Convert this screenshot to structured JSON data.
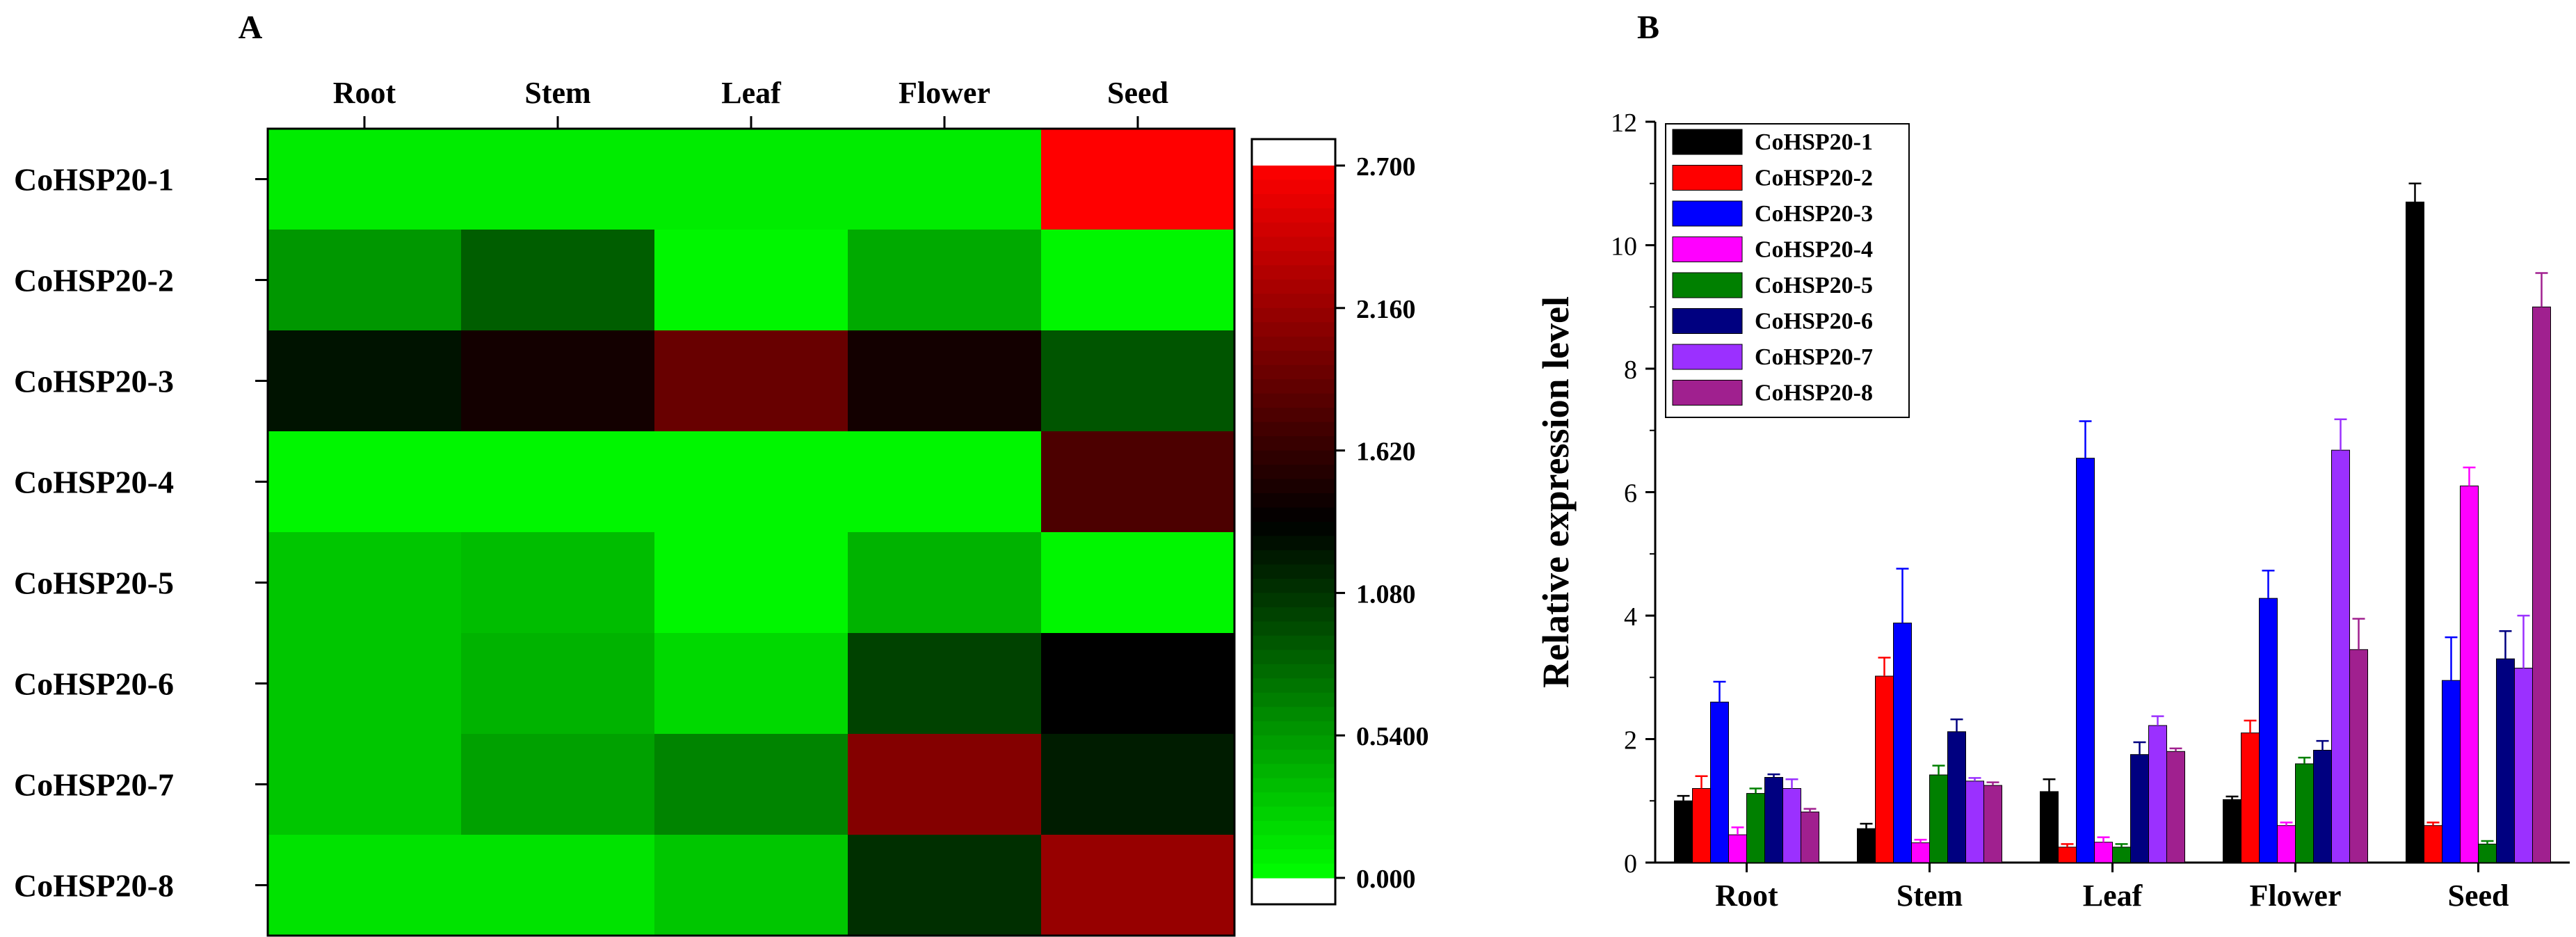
{
  "panels": {
    "a_label": "A",
    "b_label": "B"
  },
  "chart_data": [
    {
      "type": "heatmap",
      "panel": "A",
      "columns": [
        "Root",
        "Stem",
        "Leaf",
        "Flower",
        "Seed"
      ],
      "rows": [
        "CoHSP20-1",
        "CoHSP20-2",
        "CoHSP20-3",
        "CoHSP20-4",
        "CoHSP20-5",
        "CoHSP20-6",
        "CoHSP20-7",
        "CoHSP20-8"
      ],
      "values": [
        [
          0.1,
          0.1,
          0.1,
          0.1,
          2.7
        ],
        [
          0.55,
          0.85,
          0.05,
          0.45,
          0.05
        ],
        [
          1.25,
          1.45,
          1.9,
          1.45,
          0.9
        ],
        [
          0.05,
          0.05,
          0.05,
          0.05,
          1.75
        ],
        [
          0.3,
          0.35,
          0.05,
          0.4,
          0.05
        ],
        [
          0.3,
          0.4,
          0.2,
          1.0,
          1.35
        ],
        [
          0.3,
          0.5,
          0.65,
          2.05,
          1.2
        ],
        [
          0.15,
          0.15,
          0.3,
          1.1,
          2.15
        ]
      ],
      "colorbar": {
        "min": 0.0,
        "max": 2.7,
        "ticks": [
          "2.700",
          "2.160",
          "1.620",
          "1.080",
          "0.5400",
          "0.000"
        ],
        "colors": {
          "low": "#00ff00",
          "mid": "#000000",
          "high": "#ff0000"
        }
      }
    },
    {
      "type": "bar",
      "panel": "B",
      "categories": [
        "Root",
        "Stem",
        "Leaf",
        "Flower",
        "Seed"
      ],
      "ylabel": "Relative expression level",
      "xlabel": "",
      "ylim": [
        0,
        12
      ],
      "yticks": [
        0,
        2,
        4,
        6,
        8,
        10,
        12
      ],
      "legend_position": "top-left",
      "series": [
        {
          "name": "CoHSP20-1",
          "color": "#000000",
          "values": [
            1.0,
            0.55,
            1.15,
            1.02,
            10.7
          ],
          "errors": [
            0.08,
            0.08,
            0.2,
            0.05,
            0.3
          ]
        },
        {
          "name": "CoHSP20-2",
          "color": "#ff0000",
          "values": [
            1.2,
            3.02,
            0.25,
            2.1,
            0.6
          ],
          "errors": [
            0.2,
            0.3,
            0.05,
            0.2,
            0.05
          ]
        },
        {
          "name": "CoHSP20-3",
          "color": "#0000ff",
          "values": [
            2.6,
            3.88,
            6.55,
            4.28,
            2.95
          ],
          "errors": [
            0.33,
            0.88,
            0.6,
            0.45,
            0.7
          ]
        },
        {
          "name": "CoHSP20-4",
          "color": "#ff00ff",
          "values": [
            0.45,
            0.32,
            0.33,
            0.6,
            6.1
          ],
          "errors": [
            0.12,
            0.05,
            0.08,
            0.05,
            0.3
          ]
        },
        {
          "name": "CoHSP20-5",
          "color": "#008000",
          "values": [
            1.12,
            1.42,
            0.25,
            1.6,
            0.3
          ],
          "errors": [
            0.08,
            0.15,
            0.05,
            0.1,
            0.05
          ]
        },
        {
          "name": "CoHSP20-6",
          "color": "#000080",
          "values": [
            1.38,
            2.12,
            1.75,
            1.82,
            3.3
          ],
          "errors": [
            0.05,
            0.2,
            0.2,
            0.15,
            0.45
          ]
        },
        {
          "name": "CoHSP20-7",
          "color": "#9b30ff",
          "values": [
            1.2,
            1.32,
            2.22,
            6.68,
            3.15
          ],
          "errors": [
            0.15,
            0.05,
            0.15,
            0.5,
            0.85
          ]
        },
        {
          "name": "CoHSP20-8",
          "color": "#a0208f",
          "values": [
            0.82,
            1.25,
            1.8,
            3.45,
            9.0
          ],
          "errors": [
            0.05,
            0.05,
            0.05,
            0.5,
            0.55
          ]
        }
      ]
    }
  ]
}
